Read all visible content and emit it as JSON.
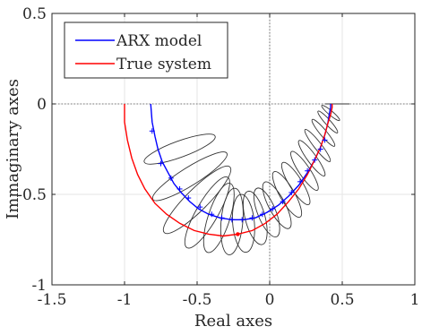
{
  "chart_data": {
    "type": "line",
    "xlabel": "Real axes",
    "ylabel": "Immaginary axes",
    "xlim": [
      -1.5,
      1
    ],
    "ylim": [
      -1,
      0.5
    ],
    "xticks": [
      -1.5,
      -1,
      -0.5,
      0,
      0.5,
      1
    ],
    "xtick_labels": [
      "-1.5",
      "-1",
      "-0.5",
      "0",
      "0.5",
      "1"
    ],
    "yticks": [
      -1,
      -0.5,
      0,
      0.5
    ],
    "ytick_labels": [
      "-1",
      "-0.5",
      "0",
      "0.5"
    ],
    "grid": true,
    "reference_lines": {
      "x": 0,
      "y": 0
    },
    "legend": {
      "location": "top-left",
      "entries": [
        {
          "label": "ARX model",
          "color": "#0000ff"
        },
        {
          "label": "True system",
          "color": "#ff0000"
        }
      ]
    },
    "series": [
      {
        "name": "ARX model",
        "color": "#0000ff",
        "x": [
          -0.82,
          -0.81,
          -0.79,
          -0.77,
          -0.74,
          -0.7,
          -0.66,
          -0.61,
          -0.55,
          -0.49,
          -0.42,
          -0.34,
          -0.26,
          -0.18,
          -0.1,
          -0.02,
          0.06,
          0.13,
          0.2,
          0.26,
          0.31,
          0.35,
          0.38,
          0.4,
          0.41,
          0.42,
          0.42
        ],
        "y": [
          0,
          -0.1,
          -0.18,
          -0.25,
          -0.32,
          -0.38,
          -0.44,
          -0.49,
          -0.54,
          -0.58,
          -0.61,
          -0.63,
          -0.64,
          -0.64,
          -0.63,
          -0.6,
          -0.56,
          -0.51,
          -0.45,
          -0.38,
          -0.31,
          -0.24,
          -0.17,
          -0.11,
          -0.06,
          -0.02,
          0
        ],
        "markers_x": [
          -0.81,
          -0.75,
          -0.68,
          -0.62,
          -0.56,
          -0.48,
          -0.4,
          -0.33,
          -0.26,
          -0.19,
          -0.12,
          -0.05,
          0.02,
          0.09,
          0.15,
          0.21,
          0.26,
          0.31,
          0.35,
          0.38
        ],
        "markers_y": [
          -0.15,
          -0.33,
          -0.41,
          -0.47,
          -0.52,
          -0.57,
          -0.61,
          -0.63,
          -0.64,
          -0.64,
          -0.63,
          -0.61,
          -0.58,
          -0.54,
          -0.49,
          -0.43,
          -0.37,
          -0.31,
          -0.25,
          -0.2
        ]
      },
      {
        "name": "True system",
        "color": "#ff0000",
        "x": [
          -1.0,
          -1.0,
          -0.98,
          -0.95,
          -0.91,
          -0.86,
          -0.79,
          -0.71,
          -0.62,
          -0.52,
          -0.42,
          -0.32,
          -0.22,
          -0.12,
          -0.03,
          0.05,
          0.13,
          0.2,
          0.26,
          0.31,
          0.35,
          0.38,
          0.4,
          0.42,
          0.43,
          0.43
        ],
        "y": [
          0,
          -0.1,
          -0.2,
          -0.3,
          -0.39,
          -0.47,
          -0.55,
          -0.61,
          -0.66,
          -0.7,
          -0.72,
          -0.73,
          -0.72,
          -0.7,
          -0.66,
          -0.61,
          -0.54,
          -0.47,
          -0.39,
          -0.31,
          -0.24,
          -0.17,
          -0.11,
          -0.06,
          -0.02,
          0
        ],
        "marker": {
          "x": -0.22,
          "y": -0.72
        }
      }
    ],
    "uncertainty_ellipses": {
      "color": "#333333",
      "items": [
        {
          "cx": -0.62,
          "cy": -0.25,
          "rx": 0.26,
          "ry": 0.045,
          "angle_deg": 20
        },
        {
          "cx": -0.55,
          "cy": -0.4,
          "rx": 0.3,
          "ry": 0.05,
          "angle_deg": 32
        },
        {
          "cx": -0.5,
          "cy": -0.53,
          "rx": 0.32,
          "ry": 0.06,
          "angle_deg": 45
        },
        {
          "cx": -0.43,
          "cy": -0.6,
          "rx": 0.28,
          "ry": 0.06,
          "angle_deg": 60
        },
        {
          "cx": -0.35,
          "cy": -0.63,
          "rx": 0.25,
          "ry": 0.06,
          "angle_deg": 72
        },
        {
          "cx": -0.26,
          "cy": -0.65,
          "rx": 0.23,
          "ry": 0.06,
          "angle_deg": 85
        },
        {
          "cx": -0.18,
          "cy": -0.66,
          "rx": 0.2,
          "ry": 0.06,
          "angle_deg": 95
        },
        {
          "cx": -0.1,
          "cy": -0.63,
          "rx": 0.19,
          "ry": 0.055,
          "angle_deg": 105
        },
        {
          "cx": -0.02,
          "cy": -0.6,
          "rx": 0.18,
          "ry": 0.05,
          "angle_deg": 112
        },
        {
          "cx": 0.05,
          "cy": -0.56,
          "rx": 0.18,
          "ry": 0.045,
          "angle_deg": 118
        },
        {
          "cx": 0.12,
          "cy": -0.5,
          "rx": 0.18,
          "ry": 0.04,
          "angle_deg": 120
        },
        {
          "cx": 0.18,
          "cy": -0.44,
          "rx": 0.17,
          "ry": 0.035,
          "angle_deg": 122
        },
        {
          "cx": 0.24,
          "cy": -0.37,
          "rx": 0.16,
          "ry": 0.03,
          "angle_deg": 124
        },
        {
          "cx": 0.29,
          "cy": -0.3,
          "rx": 0.15,
          "ry": 0.025,
          "angle_deg": 126
        },
        {
          "cx": 0.33,
          "cy": -0.23,
          "rx": 0.14,
          "ry": 0.02,
          "angle_deg": 128
        },
        {
          "cx": 0.37,
          "cy": -0.16,
          "rx": 0.12,
          "ry": 0.018,
          "angle_deg": 130
        },
        {
          "cx": 0.4,
          "cy": -0.1,
          "rx": 0.1,
          "ry": 0.015,
          "angle_deg": 132
        },
        {
          "cx": 0.42,
          "cy": -0.05,
          "rx": 0.08,
          "ry": 0.012,
          "angle_deg": 140
        }
      ],
      "tail_line": {
        "x": [
          0.38,
          0.55
        ],
        "y": [
          0,
          0
        ]
      }
    }
  }
}
